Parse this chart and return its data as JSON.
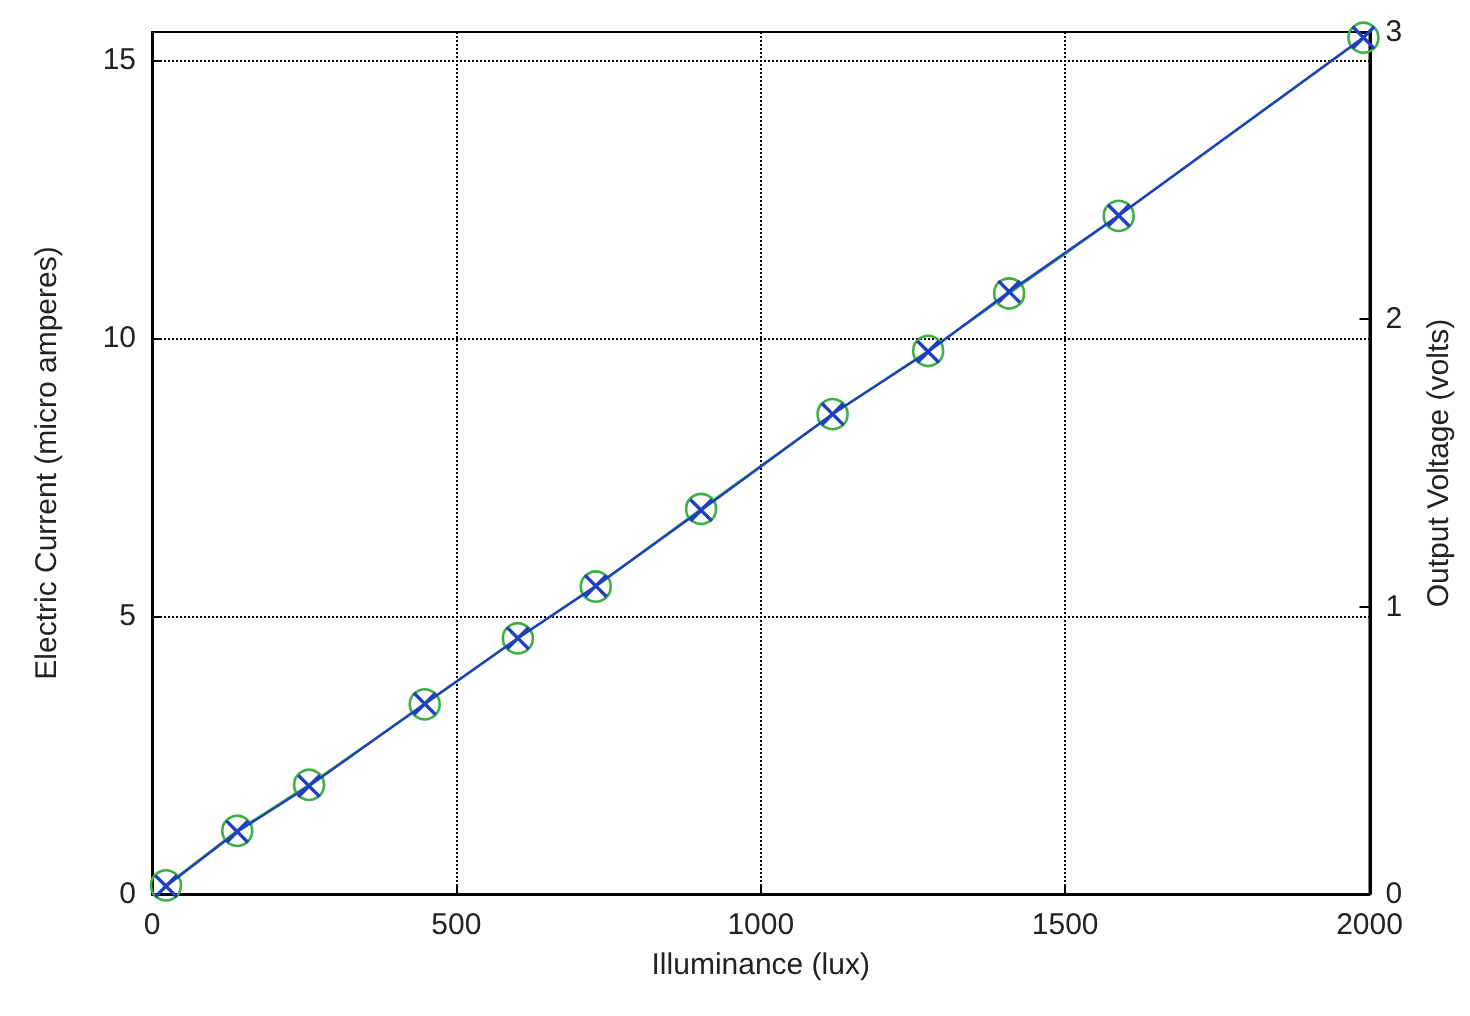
{
  "chart_data": {
    "type": "line",
    "xlabel": "Illuminance (lux)",
    "ylabel": "Electric Current (micro amperes)",
    "y2label": "Output Voltage (volts)",
    "x": [
      23,
      140,
      258,
      448,
      601,
      729,
      902,
      1118,
      1275,
      1408,
      1588,
      1990
    ],
    "series": [
      {
        "color": "#1f3fbf",
        "marker": "cross",
        "values": [
          0.14,
          1.12,
          1.94,
          3.42,
          4.6,
          5.54,
          6.9,
          8.63,
          9.75,
          10.83,
          12.2,
          15.4
        ]
      },
      {
        "color": "#3cb043",
        "marker": "circle",
        "axis": "y2",
        "values": [
          0.03,
          0.22,
          0.38,
          0.66,
          0.89,
          1.07,
          1.34,
          1.67,
          1.89,
          2.09,
          2.36,
          2.98
        ]
      }
    ],
    "xlim": [
      0,
      2000
    ],
    "xticks": [
      0,
      500,
      {
        "value": 1000,
        "label": "1000"
      },
      {
        "value": 1500,
        "label": "1500"
      },
      {
        "value": 2000,
        "label": "2000"
      }
    ],
    "ylim": [
      0,
      15.5
    ],
    "yticks": [
      0,
      5,
      10,
      15
    ],
    "y2lim": [
      0,
      3
    ],
    "y2ticks": [
      0,
      1,
      2,
      3
    ],
    "grid": true,
    "line_style": "solid"
  }
}
